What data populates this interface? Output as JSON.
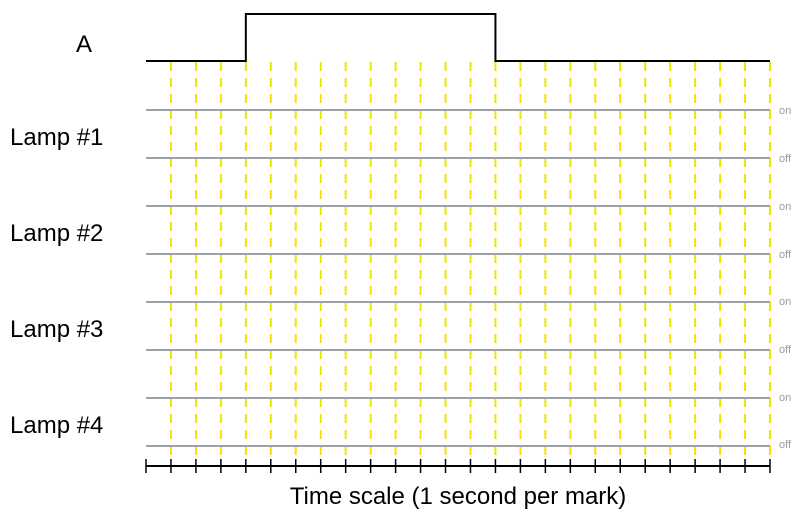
{
  "input_signal": {
    "label": "A",
    "high_from_tick": 4,
    "high_to_tick": 14
  },
  "lamps": [
    {
      "label": "Lamp #1",
      "on_label": "on",
      "off_label": "off"
    },
    {
      "label": "Lamp #2",
      "on_label": "on",
      "off_label": "off"
    },
    {
      "label": "Lamp #3",
      "on_label": "on",
      "off_label": "off"
    },
    {
      "label": "Lamp #4",
      "on_label": "on",
      "off_label": "off"
    }
  ],
  "time_axis": {
    "label": "Time scale (1 second per mark)",
    "tick_count": 26
  },
  "colors": {
    "grid": "#f2e400",
    "rail": "#a0a0a0",
    "signal": "#000000",
    "axis": "#000000"
  }
}
